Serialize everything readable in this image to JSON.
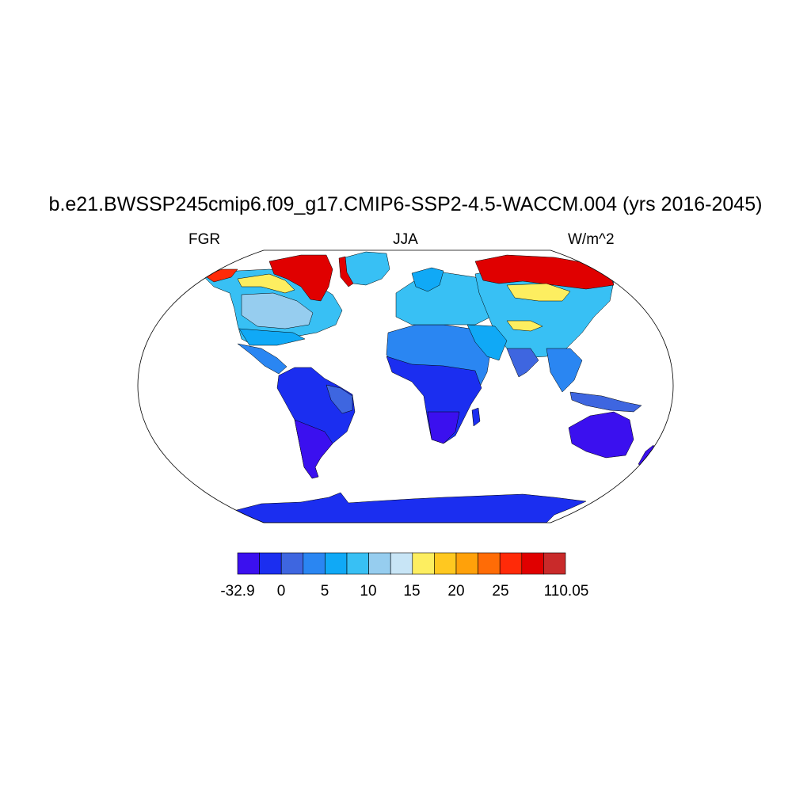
{
  "title": "b.e21.BWSSP245cmip6.f09_g17.CMIP6-SSP2-4.5-WACCM.004 (yrs 2016-2045)",
  "left_string": "FGR",
  "center_string": "JJA",
  "right_string": "W/m^2",
  "colorbar": {
    "colors": [
      "#3b10ef",
      "#1b2ef0",
      "#3e66e0",
      "#2a86f2",
      "#10a9f6",
      "#38c0f4",
      "#96cdef",
      "#c8e5f6",
      "#fdee60",
      "#ffc820",
      "#ffa10a",
      "#ff6c06",
      "#ff2a08",
      "#e00000",
      "#c92a2a"
    ],
    "labels": [
      "-32.9",
      "0",
      "5",
      "10",
      "15",
      "20",
      "25",
      "110.05"
    ],
    "label_box_index": [
      0,
      1,
      2,
      3,
      4,
      5,
      6,
      15
    ]
  },
  "map": {
    "projection": "Robinson",
    "colors": {
      "south_low": "#3b10ef",
      "antarctica": "#1b2ef0",
      "tropics_dark": "#1b2ef0",
      "tropics_mid": "#3e66e0",
      "midlat": "#2a86f2",
      "midlat_light": "#10a9f6",
      "north_light": "#38c0f4",
      "high_pale": "#96cdef",
      "greenland": "#38c0f4",
      "yellow": "#fdee60",
      "arctic_hot": "#e00000",
      "arctic_red": "#ff2a08"
    }
  }
}
